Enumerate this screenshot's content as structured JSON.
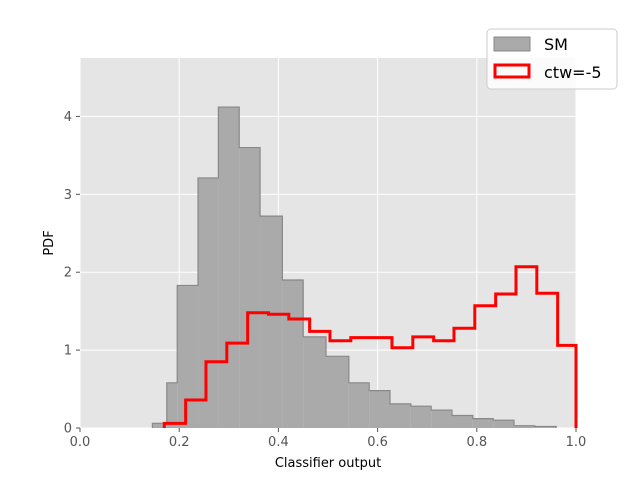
{
  "chart_data": {
    "type": "histogram",
    "xlabel": "Classifier output",
    "ylabel": "PDF",
    "xlim": [
      0.0,
      1.0
    ],
    "ylim": [
      0,
      4.75
    ],
    "xticks": [
      "0.0",
      "0.2",
      "0.4",
      "0.6",
      "0.8",
      "1.0"
    ],
    "yticks": [
      "0",
      "1",
      "2",
      "3",
      "4"
    ],
    "grid": true,
    "legend_position": "top-right",
    "series": [
      {
        "name": "SM",
        "style": "filled",
        "color": "#aaaaaa",
        "edge_color": "#888888",
        "bins": [
          {
            "x0": 0.146,
            "x1": 0.175,
            "y": 0.06
          },
          {
            "x0": 0.175,
            "x1": 0.196,
            "y": 0.58
          },
          {
            "x0": 0.196,
            "x1": 0.238,
            "y": 1.83
          },
          {
            "x0": 0.238,
            "x1": 0.279,
            "y": 3.21
          },
          {
            "x0": 0.279,
            "x1": 0.321,
            "y": 4.12
          },
          {
            "x0": 0.321,
            "x1": 0.363,
            "y": 3.6
          },
          {
            "x0": 0.363,
            "x1": 0.408,
            "y": 2.72
          },
          {
            "x0": 0.408,
            "x1": 0.45,
            "y": 1.9
          },
          {
            "x0": 0.45,
            "x1": 0.496,
            "y": 1.17
          },
          {
            "x0": 0.496,
            "x1": 0.542,
            "y": 0.92
          },
          {
            "x0": 0.542,
            "x1": 0.583,
            "y": 0.58
          },
          {
            "x0": 0.583,
            "x1": 0.625,
            "y": 0.48
          },
          {
            "x0": 0.625,
            "x1": 0.667,
            "y": 0.31
          },
          {
            "x0": 0.667,
            "x1": 0.708,
            "y": 0.28
          },
          {
            "x0": 0.708,
            "x1": 0.75,
            "y": 0.23
          },
          {
            "x0": 0.75,
            "x1": 0.792,
            "y": 0.16
          },
          {
            "x0": 0.792,
            "x1": 0.833,
            "y": 0.12
          },
          {
            "x0": 0.833,
            "x1": 0.875,
            "y": 0.1
          },
          {
            "x0": 0.875,
            "x1": 0.917,
            "y": 0.03
          },
          {
            "x0": 0.917,
            "x1": 0.96,
            "y": 0.02
          }
        ]
      },
      {
        "name": "ctw=-5",
        "style": "step",
        "color": "#ff0000",
        "edges": [
          0.17,
          0.213,
          0.254,
          0.296,
          0.338,
          0.38,
          0.421,
          0.463,
          0.504,
          0.546,
          0.588,
          0.629,
          0.671,
          0.713,
          0.754,
          0.796,
          0.838,
          0.879,
          0.921,
          0.963,
          1.0
        ],
        "values": [
          0.06,
          0.36,
          0.85,
          1.09,
          1.48,
          1.46,
          1.4,
          1.24,
          1.12,
          1.16,
          1.16,
          1.03,
          1.17,
          1.12,
          1.28,
          1.57,
          1.72,
          2.07,
          1.73,
          1.06
        ]
      }
    ]
  }
}
